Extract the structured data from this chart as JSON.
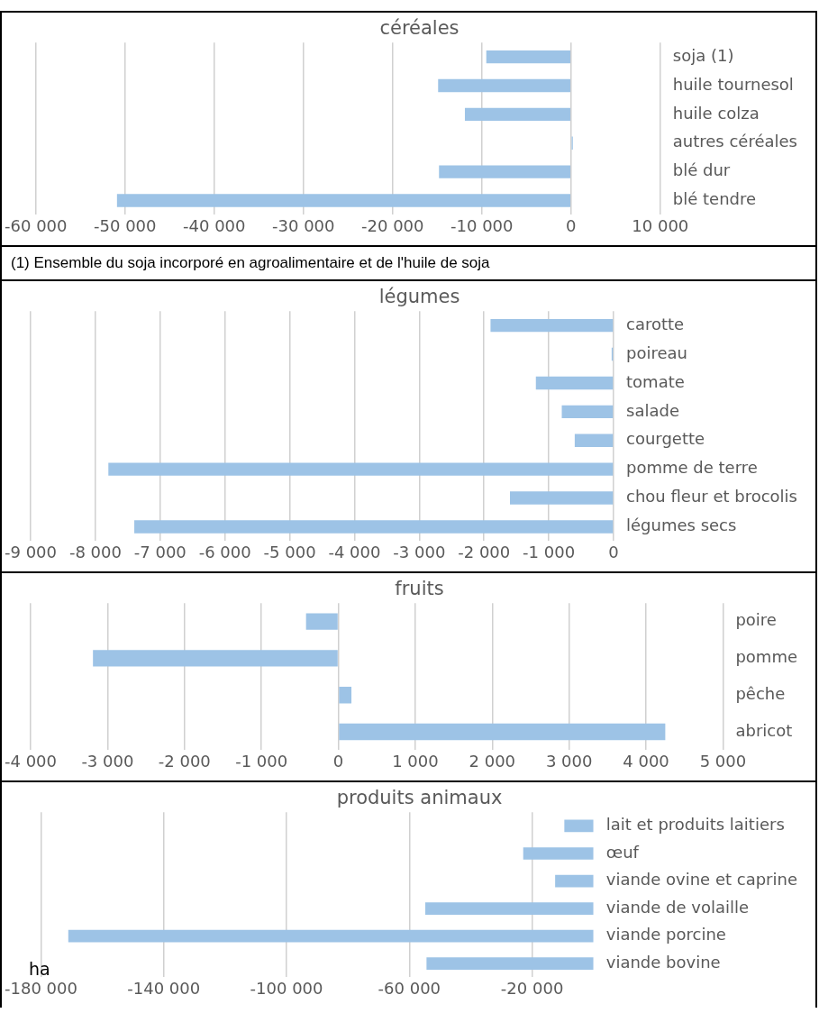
{
  "chart_data": [
    {
      "type": "bar",
      "orientation": "horizontal",
      "title": "céréales",
      "categories": [
        "soja (1)",
        "huile tournesol",
        "huile colza",
        "autres céréales",
        "blé dur",
        "blé tendre"
      ],
      "values": [
        -9500,
        -14900,
        -11900,
        200,
        -14800,
        -50900
      ],
      "color": "#9dc3e6",
      "xlim": [
        -60000,
        10000
      ],
      "xticks": [
        {
          "value": -60000,
          "label": "-60 000"
        },
        {
          "value": -50000,
          "label": "-50 000"
        },
        {
          "value": -40000,
          "label": "-40 000"
        },
        {
          "value": -30000,
          "label": "-30 000"
        },
        {
          "value": -20000,
          "label": "-20 000"
        },
        {
          "value": -10000,
          "label": "-10 000"
        },
        {
          "value": 0,
          "label": "0"
        },
        {
          "value": 10000,
          "label": "10 000"
        }
      ],
      "grid": "x",
      "legend": false,
      "annotations": [
        "(1) Ensemble du soja incorporé en agroalimentaire et de l'huile de soja"
      ]
    },
    {
      "type": "bar",
      "orientation": "horizontal",
      "title": "légumes",
      "categories": [
        "carotte",
        "poireau",
        "tomate",
        "salade",
        "courgette",
        "pomme de terre",
        "chou fleur et brocolis",
        "légumes secs"
      ],
      "values": [
        -1900,
        -30,
        -1200,
        -800,
        -600,
        -7800,
        -1600,
        -7400
      ],
      "color": "#9dc3e6",
      "xlim": [
        -9000,
        0
      ],
      "xticks": [
        {
          "value": -9000,
          "label": "-9 000"
        },
        {
          "value": -8000,
          "label": "-8 000"
        },
        {
          "value": -7000,
          "label": "-7 000"
        },
        {
          "value": -6000,
          "label": "-6 000"
        },
        {
          "value": -5000,
          "label": "-5 000"
        },
        {
          "value": -4000,
          "label": "-4 000"
        },
        {
          "value": -3000,
          "label": "-3 000"
        },
        {
          "value": -2000,
          "label": "-2 000"
        },
        {
          "value": -1000,
          "label": "-1 000"
        },
        {
          "value": 0,
          "label": "0"
        }
      ],
      "grid": "x",
      "legend": false
    },
    {
      "type": "bar",
      "orientation": "horizontal",
      "title": "fruits",
      "categories": [
        "poire",
        "pomme",
        "pêche",
        "abricot"
      ],
      "values": [
        -420,
        -3190,
        170,
        4250
      ],
      "color": "#9dc3e6",
      "xlim": [
        -4000,
        5000
      ],
      "xticks": [
        {
          "value": -4000,
          "label": "-4 000"
        },
        {
          "value": -3000,
          "label": "-3 000"
        },
        {
          "value": -2000,
          "label": "-2 000"
        },
        {
          "value": -1000,
          "label": "-1 000"
        },
        {
          "value": 0,
          "label": "0"
        },
        {
          "value": 1000,
          "label": "1 000"
        },
        {
          "value": 2000,
          "label": "2 000"
        },
        {
          "value": 3000,
          "label": "3 000"
        },
        {
          "value": 4000,
          "label": "4 000"
        },
        {
          "value": 5000,
          "label": "5 000"
        }
      ],
      "grid": "x",
      "legend": false
    },
    {
      "type": "bar",
      "orientation": "horizontal",
      "title": "produits animaux",
      "xlabel": "ha",
      "categories": [
        "lait et produits laitiers",
        "œuf",
        "viande ovine et caprine",
        "viande de volaille",
        "viande porcine",
        "viande bovine"
      ],
      "values": [
        -9500,
        -22900,
        -12500,
        -54800,
        -171100,
        -54400
      ],
      "color": "#9dc3e6",
      "xlim": [
        -180000,
        0
      ],
      "xticks": [
        {
          "value": -180000,
          "label": "-180 000"
        },
        {
          "value": -140000,
          "label": "-140 000"
        },
        {
          "value": -100000,
          "label": "-100 000"
        },
        {
          "value": -60000,
          "label": "-60 000"
        },
        {
          "value": -20000,
          "label": "-20 000"
        }
      ],
      "grid": "x",
      "legend": false
    }
  ]
}
